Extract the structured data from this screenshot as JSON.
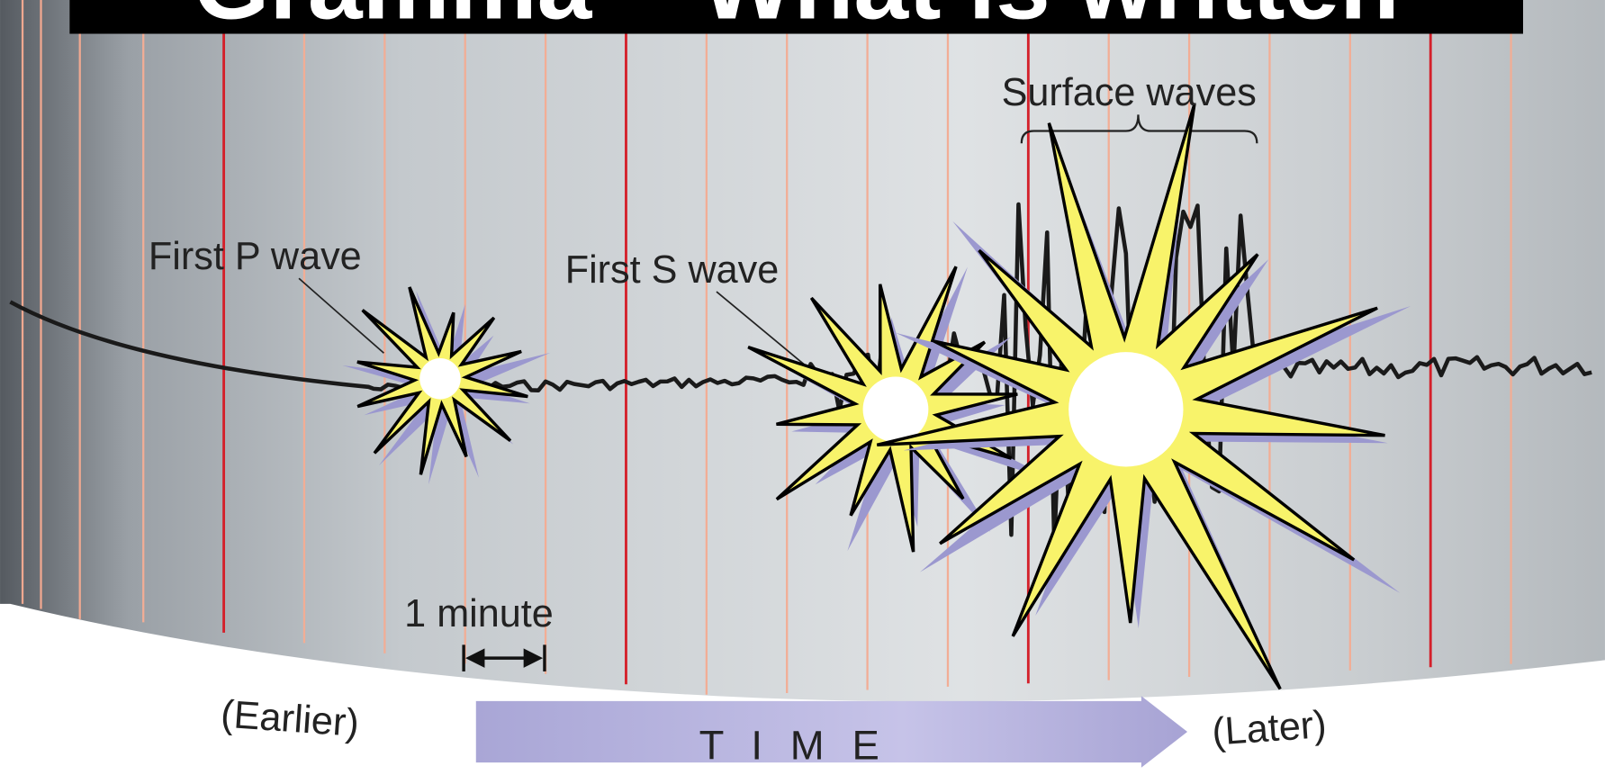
{
  "header": {
    "title": "Gramma – What is written"
  },
  "labels": {
    "surface_waves": "Surface waves",
    "first_p_wave": "First P wave",
    "first_s_wave": "First S wave",
    "one_minute": "1 minute",
    "earlier": "(Earlier)",
    "time": "T I M E",
    "later": "(Later)"
  }
}
